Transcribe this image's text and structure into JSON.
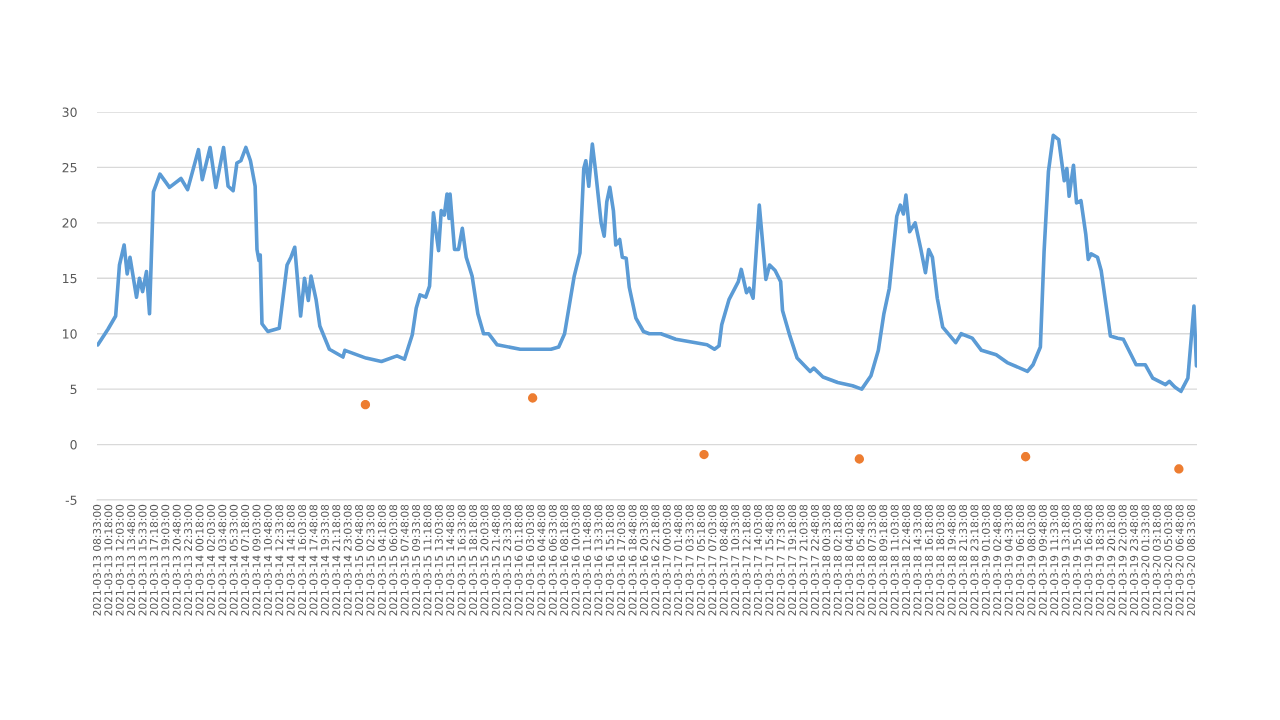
{
  "chart_data": {
    "type": "line",
    "ylim": [
      -5,
      30
    ],
    "yticks": [
      -5,
      0,
      5,
      10,
      15,
      20,
      25,
      30
    ],
    "grid": "y",
    "xlim": [
      "2021-03-13T08:25",
      "2021-03-20T09:20"
    ],
    "xticks": [
      {
        "value": "2021-03-13T08:33",
        "label": "2021-03-13 08:33:00"
      },
      {
        "value": "2021-03-13T10:18",
        "label": "2021-03-13 10:18:00"
      },
      {
        "value": "2021-03-13T12:03",
        "label": "2021-03-13 12:03:00"
      },
      {
        "value": "2021-03-13T13:48",
        "label": "2021-03-13 13:48:00"
      },
      {
        "value": "2021-03-13T15:33",
        "label": "2021-03-13 15:33:00"
      },
      {
        "value": "2021-03-13T17:18",
        "label": "2021-03-13 17:18:00"
      },
      {
        "value": "2021-03-13T19:03",
        "label": "2021-03-13 19:03:00"
      },
      {
        "value": "2021-03-13T20:48",
        "label": "2021-03-13 20:48:00"
      },
      {
        "value": "2021-03-13T22:33",
        "label": "2021-03-13 22:33:00"
      },
      {
        "value": "2021-03-14T00:18",
        "label": "2021-03-14 00:18:00"
      },
      {
        "value": "2021-03-14T02:03",
        "label": "2021-03-14 02:03:00"
      },
      {
        "value": "2021-03-14T03:48",
        "label": "2021-03-14 03:48:00"
      },
      {
        "value": "2021-03-14T05:33",
        "label": "2021-03-14 05:33:00"
      },
      {
        "value": "2021-03-14T07:18",
        "label": "2021-03-14 07:18:00"
      },
      {
        "value": "2021-03-14T09:03",
        "label": "2021-03-14 09:03:00"
      },
      {
        "value": "2021-03-14T10:48",
        "label": "2021-03-14 10:48:00"
      },
      {
        "value": "2021-03-14T12:33",
        "label": "2021-03-14 12:33:08"
      },
      {
        "value": "2021-03-14T14:18",
        "label": "2021-03-14 14:18:08"
      },
      {
        "value": "2021-03-14T16:03",
        "label": "2021-03-14 16:03:08"
      },
      {
        "value": "2021-03-14T17:48",
        "label": "2021-03-14 17:48:08"
      },
      {
        "value": "2021-03-14T19:33",
        "label": "2021-03-14 19:33:08"
      },
      {
        "value": "2021-03-14T21:18",
        "label": "2021-03-14 21:18:08"
      },
      {
        "value": "2021-03-14T23:03",
        "label": "2021-03-14 23:03:08"
      },
      {
        "value": "2021-03-15T00:48",
        "label": "2021-03-15 00:48:08"
      },
      {
        "value": "2021-03-15T02:33",
        "label": "2021-03-15 02:33:08"
      },
      {
        "value": "2021-03-15T04:18",
        "label": "2021-03-15 04:18:08"
      },
      {
        "value": "2021-03-15T06:03",
        "label": "2021-03-15 06:03:08"
      },
      {
        "value": "2021-03-15T07:48",
        "label": "2021-03-15 07:48:08"
      },
      {
        "value": "2021-03-15T09:33",
        "label": "2021-03-15 09:33:08"
      },
      {
        "value": "2021-03-15T11:18",
        "label": "2021-03-15 11:18:08"
      },
      {
        "value": "2021-03-15T13:03",
        "label": "2021-03-15 13:03:08"
      },
      {
        "value": "2021-03-15T14:48",
        "label": "2021-03-15 14:48:08"
      },
      {
        "value": "2021-03-15T16:33",
        "label": "2021-03-15 16:33:08"
      },
      {
        "value": "2021-03-15T18:18",
        "label": "2021-03-15 18:18:08"
      },
      {
        "value": "2021-03-15T20:03",
        "label": "2021-03-15 20:03:08"
      },
      {
        "value": "2021-03-15T21:48",
        "label": "2021-03-15 21:48:08"
      },
      {
        "value": "2021-03-15T23:33",
        "label": "2021-03-15 23:33:08"
      },
      {
        "value": "2021-03-16T01:18",
        "label": "2021-03-16 01:18:08"
      },
      {
        "value": "2021-03-16T03:03",
        "label": "2021-03-16 03:03:08"
      },
      {
        "value": "2021-03-16T04:48",
        "label": "2021-03-16 04:48:08"
      },
      {
        "value": "2021-03-16T06:33",
        "label": "2021-03-16 06:33:08"
      },
      {
        "value": "2021-03-16T08:18",
        "label": "2021-03-16 08:18:08"
      },
      {
        "value": "2021-03-16T10:03",
        "label": "2021-03-16 10:03:08"
      },
      {
        "value": "2021-03-16T11:48",
        "label": "2021-03-16 11:48:08"
      },
      {
        "value": "2021-03-16T13:33",
        "label": "2021-03-16 13:33:08"
      },
      {
        "value": "2021-03-16T15:18",
        "label": "2021-03-16 15:18:08"
      },
      {
        "value": "2021-03-16T17:03",
        "label": "2021-03-16 17:03:08"
      },
      {
        "value": "2021-03-16T18:48",
        "label": "2021-03-16 18:48:08"
      },
      {
        "value": "2021-03-16T20:33",
        "label": "2021-03-16 20:33:08"
      },
      {
        "value": "2021-03-16T22:18",
        "label": "2021-03-16 22:18:08"
      },
      {
        "value": "2021-03-17T00:03",
        "label": "2021-03-17 00:03:08"
      },
      {
        "value": "2021-03-17T01:48",
        "label": "2021-03-17 01:48:08"
      },
      {
        "value": "2021-03-17T03:33",
        "label": "2021-03-17 03:33:08"
      },
      {
        "value": "2021-03-17T05:18",
        "label": "2021-03-17 05:18:08"
      },
      {
        "value": "2021-03-17T07:03",
        "label": "2021-03-17 07:03:08"
      },
      {
        "value": "2021-03-17T08:48",
        "label": "2021-03-17 08:48:08"
      },
      {
        "value": "2021-03-17T10:33",
        "label": "2021-03-17 10:33:08"
      },
      {
        "value": "2021-03-17T12:18",
        "label": "2021-03-17 12:18:08"
      },
      {
        "value": "2021-03-17T14:03",
        "label": "2021-03-17 14:03:08"
      },
      {
        "value": "2021-03-17T15:48",
        "label": "2021-03-17 15:48:08"
      },
      {
        "value": "2021-03-17T17:33",
        "label": "2021-03-17 17:33:08"
      },
      {
        "value": "2021-03-17T19:18",
        "label": "2021-03-17 19:18:08"
      },
      {
        "value": "2021-03-17T21:03",
        "label": "2021-03-17 21:03:08"
      },
      {
        "value": "2021-03-17T22:48",
        "label": "2021-03-17 22:48:08"
      },
      {
        "value": "2021-03-18T00:33",
        "label": "2021-03-18 00:33:08"
      },
      {
        "value": "2021-03-18T02:18",
        "label": "2021-03-18 02:18:08"
      },
      {
        "value": "2021-03-18T04:03",
        "label": "2021-03-18 04:03:08"
      },
      {
        "value": "2021-03-18T05:48",
        "label": "2021-03-18 05:48:08"
      },
      {
        "value": "2021-03-18T07:33",
        "label": "2021-03-18 07:33:08"
      },
      {
        "value": "2021-03-18T09:18",
        "label": "2021-03-18 09:18:08"
      },
      {
        "value": "2021-03-18T11:03",
        "label": "2021-03-18 11:03:08"
      },
      {
        "value": "2021-03-18T12:48",
        "label": "2021-03-18 12:48:08"
      },
      {
        "value": "2021-03-18T14:33",
        "label": "2021-03-18 14:33:08"
      },
      {
        "value": "2021-03-18T16:18",
        "label": "2021-03-18 16:18:08"
      },
      {
        "value": "2021-03-18T18:03",
        "label": "2021-03-18 18:03:08"
      },
      {
        "value": "2021-03-18T19:48",
        "label": "2021-03-18 19:48:08"
      },
      {
        "value": "2021-03-18T21:33",
        "label": "2021-03-18 21:33:08"
      },
      {
        "value": "2021-03-18T23:18",
        "label": "2021-03-18 23:18:08"
      },
      {
        "value": "2021-03-19T01:03",
        "label": "2021-03-19 01:03:08"
      },
      {
        "value": "2021-03-19T02:48",
        "label": "2021-03-19 02:48:08"
      },
      {
        "value": "2021-03-19T04:33",
        "label": "2021-03-19 04:33:08"
      },
      {
        "value": "2021-03-19T06:18",
        "label": "2021-03-19 06:18:08"
      },
      {
        "value": "2021-03-19T08:03",
        "label": "2021-03-19 08:03:08"
      },
      {
        "value": "2021-03-19T09:48",
        "label": "2021-03-19 09:48:08"
      },
      {
        "value": "2021-03-19T11:33",
        "label": "2021-03-19 11:33:08"
      },
      {
        "value": "2021-03-19T13:18",
        "label": "2021-03-19 13:18:08"
      },
      {
        "value": "2021-03-19T15:03",
        "label": "2021-03-19 15:03:08"
      },
      {
        "value": "2021-03-19T16:48",
        "label": "2021-03-19 16:48:08"
      },
      {
        "value": "2021-03-19T18:33",
        "label": "2021-03-19 18:33:08"
      },
      {
        "value": "2021-03-19T20:18",
        "label": "2021-03-19 20:18:08"
      },
      {
        "value": "2021-03-19T22:03",
        "label": "2021-03-19 22:03:08"
      },
      {
        "value": "2021-03-19T23:48",
        "label": "2021-03-19 23:48:08"
      },
      {
        "value": "2021-03-20T01:33",
        "label": "2021-03-20 01:33:08"
      },
      {
        "value": "2021-03-20T03:18",
        "label": "2021-03-20 03:18:08"
      },
      {
        "value": "2021-03-20T05:03",
        "label": "2021-03-20 05:03:08"
      },
      {
        "value": "2021-03-20T06:48",
        "label": "2021-03-20 06:48:08"
      },
      {
        "value": "2021-03-20T08:33",
        "label": "2021-03-20 08:33:08"
      }
    ],
    "series": [
      {
        "color": "#5b9bd5",
        "marker": "none",
        "line_style": "solid",
        "x": [
          "2021-03-13T08:33",
          "2021-03-13T10:06",
          "2021-03-13T11:17",
          "2021-03-13T11:52",
          "2021-03-13T12:35",
          "2021-03-13T13:03",
          "2021-03-13T13:29",
          "2021-03-13T14:29",
          "2021-03-13T14:56",
          "2021-03-13T15:25",
          "2021-03-13T16:01",
          "2021-03-13T16:29",
          "2021-03-13T17:05",
          "2021-03-13T18:05",
          "2021-03-13T19:33",
          "2021-03-13T21:19",
          "2021-03-13T22:20",
          "2021-03-14T00:00",
          "2021-03-14T00:35",
          "2021-03-14T01:47",
          "2021-03-14T02:40",
          "2021-03-14T03:51",
          "2021-03-14T04:33",
          "2021-03-14T05:19",
          "2021-03-14T05:54",
          "2021-03-14T06:30",
          "2021-03-14T07:17",
          "2021-03-14T07:59",
          "2021-03-14T08:42",
          "2021-03-14T08:59",
          "2021-03-14T09:17",
          "2021-03-14T09:29",
          "2021-03-14T09:45",
          "2021-03-14T10:39",
          "2021-03-14T12:24",
          "2021-03-14T13:36",
          "2021-03-14T14:12",
          "2021-03-14T14:47",
          "2021-03-14T15:41",
          "2021-03-14T16:17",
          "2021-03-14T16:52",
          "2021-03-14T17:17",
          "2021-03-14T18:03",
          "2021-03-14T18:38",
          "2021-03-14T20:06",
          "2021-03-14T22:11",
          "2021-03-14T22:29",
          "2021-03-15T01:44",
          "2021-03-15T04:06",
          "2021-03-15T06:29",
          "2021-03-15T07:38",
          "2021-03-15T08:50",
          "2021-03-15T09:26",
          "2021-03-15T10:01",
          "2021-03-15T10:54",
          "2021-03-15T11:29",
          "2021-03-15T12:05",
          "2021-03-15T12:52",
          "2021-03-15T13:17",
          "2021-03-15T13:45",
          "2021-03-15T14:10",
          "2021-03-15T14:28",
          "2021-03-15T14:38",
          "2021-03-15T15:19",
          "2021-03-15T15:56",
          "2021-03-15T16:31",
          "2021-03-15T17:07",
          "2021-03-15T18:01",
          "2021-03-15T18:54",
          "2021-03-15T19:47",
          "2021-03-15T20:33",
          "2021-03-15T21:52",
          "2021-03-16T01:24",
          "2021-03-16T06:08",
          "2021-03-16T07:19",
          "2021-03-16T08:13",
          "2021-03-16T09:42",
          "2021-03-16T10:35",
          "2021-03-16T11:10",
          "2021-03-16T11:29",
          "2021-03-16T11:56",
          "2021-03-16T12:29",
          "2021-03-16T12:56",
          "2021-03-16T13:50",
          "2021-03-16T14:18",
          "2021-03-16T14:42",
          "2021-03-16T15:10",
          "2021-03-16T15:43",
          "2021-03-16T16:05",
          "2021-03-16T16:41",
          "2021-03-16T17:05",
          "2021-03-16T17:41",
          "2021-03-16T18:09",
          "2021-03-16T19:10",
          "2021-03-16T20:20",
          "2021-03-16T21:14",
          "2021-03-16T23:01",
          "2021-03-17T01:18",
          "2021-03-17T06:06",
          "2021-03-17T07:14",
          "2021-03-17T07:56",
          "2021-03-17T08:21",
          "2021-03-17T09:29",
          "2021-03-17T10:54",
          "2021-03-17T11:21",
          "2021-03-17T12:09",
          "2021-03-17T12:36",
          "2021-03-17T13:10",
          "2021-03-17T14:07",
          "2021-03-17T15:08",
          "2021-03-17T15:42",
          "2021-03-17T16:33",
          "2021-03-17T17:24",
          "2021-03-17T17:41",
          "2021-03-17T18:49",
          "2021-03-17T19:56",
          "2021-03-17T21:56",
          "2021-03-17T22:29",
          "2021-03-17T23:54",
          "2021-03-18T02:10",
          "2021-03-18T04:26",
          "2021-03-18T05:51",
          "2021-03-18T07:16",
          "2021-03-18T08:24",
          "2021-03-18T09:15",
          "2021-03-18T10:05",
          "2021-03-18T10:40",
          "2021-03-18T11:14",
          "2021-03-18T11:47",
          "2021-03-18T12:15",
          "2021-03-18T12:38",
          "2021-03-18T13:12",
          "2021-03-18T14:03",
          "2021-03-18T14:54",
          "2021-03-18T15:38",
          "2021-03-18T16:08",
          "2021-03-18T16:42",
          "2021-03-18T17:27",
          "2021-03-18T18:17",
          "2021-03-18T20:17",
          "2021-03-18T21:07",
          "2021-03-18T22:49",
          "2021-03-19T00:14",
          "2021-03-19T02:30",
          "2021-03-19T04:11",
          "2021-03-19T07:18",
          "2021-03-19T08:09",
          "2021-03-19T09:17",
          "2021-03-19T09:51",
          "2021-03-19T10:31",
          "2021-03-19T11:16",
          "2021-03-19T12:06",
          "2021-03-19T12:57",
          "2021-03-19T13:21",
          "2021-03-19T13:42",
          "2021-03-19T14:22",
          "2021-03-19T14:50",
          "2021-03-19T15:31",
          "2021-03-19T16:15",
          "2021-03-19T16:38",
          "2021-03-19T17:05",
          "2021-03-19T18:03",
          "2021-03-19T18:37",
          "2021-03-19T20:02",
          "2021-03-19T21:10",
          "2021-03-19T22:01",
          "2021-03-19T23:59",
          "2021-03-20T01:24",
          "2021-03-20T02:32",
          "2021-03-20T04:30",
          "2021-03-20T05:05",
          "2021-03-20T05:55",
          "2021-03-20T06:52",
          "2021-03-20T07:56",
          "2021-03-20T08:52",
          "2021-03-20T09:15"
        ],
        "values": [
          9.0,
          10.4,
          11.6,
          16.2,
          18.0,
          15.4,
          16.9,
          13.3,
          15.0,
          13.8,
          15.6,
          11.8,
          22.8,
          24.4,
          23.2,
          24.0,
          23.0,
          26.6,
          23.9,
          26.8,
          23.2,
          26.8,
          23.3,
          22.9,
          25.4,
          25.6,
          26.8,
          25.6,
          23.3,
          17.6,
          16.6,
          17.1,
          10.9,
          10.2,
          10.5,
          16.2,
          16.9,
          17.8,
          11.6,
          15.0,
          13.0,
          15.2,
          13.1,
          10.7,
          8.6,
          7.9,
          8.5,
          7.8,
          7.5,
          8.0,
          7.7,
          9.9,
          12.3,
          13.5,
          13.3,
          14.3,
          20.9,
          17.5,
          21.1,
          20.7,
          22.6,
          20.4,
          22.6,
          17.6,
          17.6,
          19.5,
          16.9,
          15.2,
          11.8,
          10.0,
          10.0,
          9.0,
          8.6,
          8.6,
          8.8,
          10.0,
          15.2,
          17.3,
          24.9,
          25.6,
          23.3,
          27.1,
          24.9,
          20.0,
          18.8,
          21.9,
          23.2,
          21.1,
          18.0,
          18.5,
          16.9,
          16.8,
          14.2,
          11.4,
          10.2,
          10.0,
          10.0,
          9.5,
          9.0,
          8.6,
          8.9,
          10.8,
          13.1,
          14.7,
          15.8,
          13.7,
          14.1,
          13.2,
          21.6,
          14.9,
          16.2,
          15.7,
          14.7,
          12.1,
          9.8,
          7.8,
          6.6,
          6.9,
          6.1,
          5.6,
          5.3,
          5.0,
          6.2,
          8.5,
          11.8,
          14.1,
          17.4,
          20.6,
          21.6,
          20.8,
          22.5,
          19.2,
          20.0,
          17.7,
          15.5,
          17.6,
          16.9,
          13.2,
          10.6,
          9.2,
          10.0,
          9.6,
          8.5,
          8.1,
          7.4,
          6.6,
          7.2,
          8.8,
          17.4,
          24.6,
          27.9,
          27.5,
          23.8,
          24.9,
          22.4,
          25.2,
          21.8,
          22.0,
          19.0,
          16.7,
          17.2,
          16.9,
          15.7,
          9.8,
          9.6,
          9.5,
          7.2,
          7.2,
          6.0,
          5.4,
          5.7,
          5.2,
          4.8,
          6.0,
          12.5,
          7.1
        ]
      },
      {
        "type": "scatter",
        "color": "#ed7d31",
        "marker": "circle",
        "x": [
          "2021-03-15T01:38",
          "2021-03-16T03:19",
          "2021-03-17T05:38",
          "2021-03-18T05:29",
          "2021-03-19T07:01",
          "2021-03-20T06:33"
        ],
        "values": [
          3.6,
          4.2,
          -0.9,
          -1.3,
          -1.1,
          -2.2
        ]
      }
    ]
  }
}
